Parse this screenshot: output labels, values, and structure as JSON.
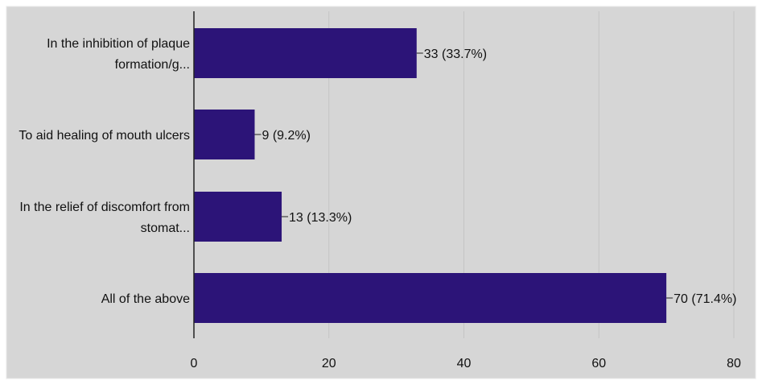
{
  "chart_data": {
    "type": "bar",
    "orientation": "horizontal",
    "title": "",
    "xlabel": "",
    "ylabel": "",
    "categories": [
      [
        "In the inhibition of plaque",
        "formation/g..."
      ],
      [
        "To aid healing of mouth ulcers"
      ],
      [
        "In the relief of discomfort from",
        "stomat..."
      ],
      [
        "All of the above"
      ]
    ],
    "values": [
      33,
      9,
      13,
      70
    ],
    "data_labels": [
      "33 (33.7%)",
      "9 (9.2%)",
      "13 (13.3%)",
      "70 (71.4%)"
    ],
    "xlim": [
      0,
      80
    ],
    "xticks": [
      0,
      20,
      40,
      60,
      80
    ],
    "xtick_labels": [
      "0",
      "20",
      "40",
      "60",
      "80"
    ],
    "grid": true,
    "legend": "none"
  },
  "colors": {
    "bar": "#2c1478",
    "plot_background": "#d6d6d6",
    "gridline": "#c4c4c4",
    "axis": "#222222",
    "text": "#111111",
    "outer_border": "#e8e8e8"
  }
}
